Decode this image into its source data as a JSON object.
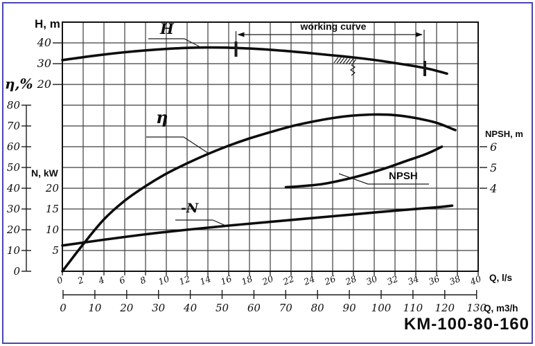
{
  "window": {
    "border_color": "#4646b2",
    "background": "#ffffff"
  },
  "pump_model": "KM-100-80-160",
  "labels": {
    "h_axis": "H, m",
    "eta_axis": "η,%",
    "n_axis": "N, kW",
    "npsh_axis": "NPSH, m",
    "q_ls_axis": "Q, l/s",
    "q_m3h_axis": "Q, m3/h",
    "working_curve": "working curve",
    "curve_h": "H",
    "curve_eta": "η",
    "curve_n": "-N",
    "curve_npsh": "NPSH"
  },
  "chart_data": {
    "type": "line",
    "title": "KM-100-80-160 pump performance curves",
    "grid": true,
    "legend_position": "inline-labels",
    "x_axis": {
      "label": "Q, l/s",
      "range": [
        0,
        40
      ],
      "ticks": [
        0,
        2,
        4,
        6,
        8,
        10,
        12,
        14,
        16,
        18,
        20,
        22,
        24,
        26,
        28,
        30,
        32,
        34,
        36,
        38,
        40
      ]
    },
    "x_axis_secondary": {
      "label": "Q, m3/h",
      "range": [
        0,
        130
      ],
      "ticks": [
        0,
        10,
        20,
        30,
        40,
        50,
        60,
        70,
        80,
        90,
        100,
        110,
        120,
        130
      ]
    },
    "y_axes": [
      {
        "id": "H",
        "label": "H, m",
        "side": "left",
        "ticks": [
          40,
          30,
          20
        ]
      },
      {
        "id": "eta",
        "label": "η,%",
        "side": "left",
        "ticks": [
          80,
          70,
          60,
          50,
          40,
          30,
          20,
          10,
          0
        ]
      },
      {
        "id": "N",
        "label": "N, kW",
        "side": "left",
        "ticks": [
          20,
          15,
          10,
          5
        ]
      },
      {
        "id": "NPSH",
        "label": "NPSH, m",
        "side": "right",
        "ticks": [
          6,
          5,
          4
        ]
      }
    ],
    "series": [
      {
        "id": "H",
        "name": "H",
        "axis": "H",
        "points": [
          [
            0,
            31.7
          ],
          [
            2,
            33.1
          ],
          [
            4,
            34.4
          ],
          [
            6,
            35.5
          ],
          [
            8,
            36.4
          ],
          [
            10,
            37.1
          ],
          [
            12,
            37.6
          ],
          [
            14,
            37.8
          ],
          [
            16,
            37.7
          ],
          [
            18,
            37.3
          ],
          [
            20,
            36.7
          ],
          [
            22,
            35.9
          ],
          [
            24,
            35.0
          ],
          [
            26,
            34.0
          ],
          [
            28,
            33.0
          ],
          [
            30,
            31.8
          ],
          [
            32,
            30.3
          ],
          [
            34,
            28.7
          ],
          [
            35.5,
            27.2
          ],
          [
            37,
            25.2
          ]
        ]
      },
      {
        "id": "eta",
        "name": "η",
        "axis": "eta",
        "points": [
          [
            0,
            0
          ],
          [
            2,
            13
          ],
          [
            4,
            25
          ],
          [
            6,
            34
          ],
          [
            8,
            41
          ],
          [
            10,
            47
          ],
          [
            12,
            52
          ],
          [
            14,
            56.5
          ],
          [
            16,
            60.5
          ],
          [
            18,
            64
          ],
          [
            20,
            67
          ],
          [
            22,
            69.8
          ],
          [
            24,
            72
          ],
          [
            26,
            73.8
          ],
          [
            28,
            75
          ],
          [
            30,
            75.5
          ],
          [
            32,
            75.2
          ],
          [
            34,
            73.8
          ],
          [
            36,
            71.5
          ],
          [
            37.8,
            68
          ]
        ]
      },
      {
        "id": "N",
        "name": "-N",
        "axis": "N",
        "points": [
          [
            0,
            6.2
          ],
          [
            4,
            7.6
          ],
          [
            8,
            8.9
          ],
          [
            12,
            10.0
          ],
          [
            16,
            11.0
          ],
          [
            20,
            11.9
          ],
          [
            24,
            12.8
          ],
          [
            28,
            13.7
          ],
          [
            32,
            14.6
          ],
          [
            36,
            15.4
          ],
          [
            37.5,
            15.8
          ]
        ]
      },
      {
        "id": "NPSH",
        "name": "NPSH",
        "axis": "NPSH",
        "points": [
          [
            21.5,
            4.05
          ],
          [
            23,
            4.1
          ],
          [
            25,
            4.2
          ],
          [
            27,
            4.4
          ],
          [
            29,
            4.65
          ],
          [
            31,
            4.95
          ],
          [
            33,
            5.3
          ],
          [
            35,
            5.65
          ],
          [
            36.5,
            6.0
          ]
        ]
      }
    ],
    "annotations": [
      {
        "type": "x-range",
        "label": "working curve",
        "from_q_ls": 16.7,
        "to_q_ls": 34.8
      },
      {
        "type": "rated-point-hatch",
        "q_ls": 27.5
      }
    ]
  }
}
